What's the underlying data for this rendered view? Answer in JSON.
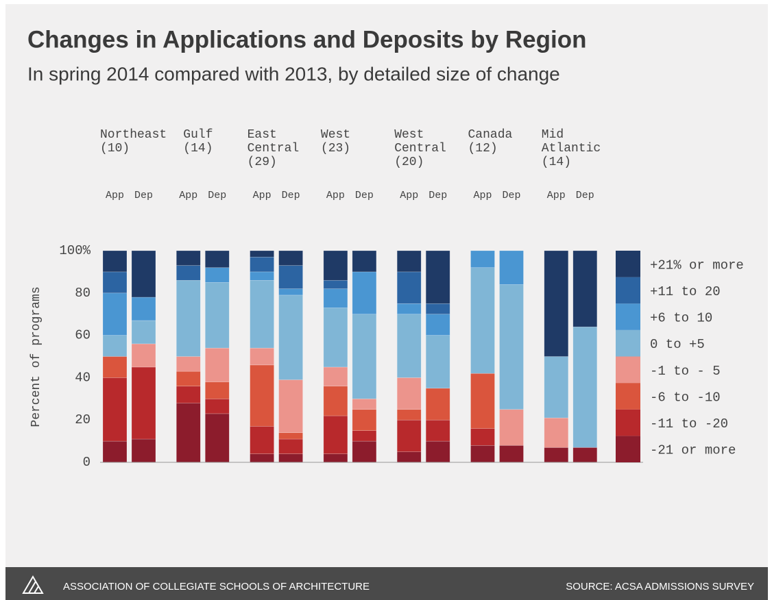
{
  "chart_data": {
    "type": "stacked_bar",
    "title": "Changes in Applications and Deposits by Region",
    "subtitle": "In spring 2014 compared with 2013, by detailed size of change",
    "ylabel": "Percent of programs",
    "groups": [
      [
        "Northeast",
        "(10)"
      ],
      [
        "Gulf",
        "(14)"
      ],
      [
        "East",
        "Central",
        "(29)"
      ],
      [
        "West",
        "(23)"
      ],
      [
        "West",
        "Central",
        "(20)"
      ],
      [
        "Canada",
        "(12)"
      ],
      [
        "Mid",
        "Atlantic",
        "(14)"
      ]
    ],
    "categories": [
      "App",
      "Dep",
      "App",
      "Dep",
      "App",
      "Dep",
      "App",
      "Dep",
      "App",
      "Dep",
      "App",
      "Dep",
      "App",
      "Dep"
    ],
    "ylim": [
      0,
      100
    ],
    "yticks": [
      0,
      20,
      40,
      60,
      80,
      {
        "value": 100,
        "label": "100%"
      }
    ],
    "series": [
      {
        "name": "-21 or more",
        "color": "#8c1c2c",
        "values": [
          10,
          11,
          28,
          23,
          4,
          4,
          4,
          10,
          5,
          10,
          8,
          8,
          7,
          7
        ]
      },
      {
        "name": "-11 to -20",
        "color": "#b8292c",
        "values": [
          30,
          34,
          8,
          7,
          13,
          7,
          18,
          5,
          15,
          10,
          8,
          0,
          0,
          0
        ]
      },
      {
        "name": "-6 to -10",
        "color": "#da553d",
        "values": [
          10,
          0,
          7,
          8,
          29,
          3,
          14,
          10,
          5,
          15,
          26,
          0,
          0,
          0
        ]
      },
      {
        "name": "-1 to - 5",
        "color": "#ec948c",
        "values": [
          0,
          11,
          7,
          16,
          8,
          25,
          9,
          5,
          15,
          0,
          0,
          17,
          14,
          0
        ]
      },
      {
        "name": "0 to +5",
        "color": "#80b6d6",
        "values": [
          10,
          11,
          36,
          31,
          32,
          40,
          28,
          40,
          30,
          25,
          50,
          59,
          29,
          57
        ]
      },
      {
        "name": "+6 to 10",
        "color": "#4a96d2",
        "values": [
          20,
          11,
          0,
          7,
          4,
          3,
          9,
          20,
          5,
          10,
          8,
          16,
          0,
          0
        ]
      },
      {
        "name": "+11 to 20",
        "color": "#2c64a2",
        "values": [
          10,
          0,
          7,
          0,
          7,
          11,
          4,
          0,
          15,
          5,
          0,
          0,
          0,
          0
        ]
      },
      {
        "name": "+21% or more",
        "color": "#1f3a66",
        "values": [
          10,
          22,
          7,
          8,
          3,
          7,
          14,
          10,
          10,
          25,
          0,
          0,
          50,
          36
        ]
      }
    ],
    "footer_left": "ASSOCIATION OF COLLEGIATE SCHOOLS OF ARCHITECTURE",
    "footer_right": "SOURCE: ACSA ADMISSIONS SURVEY"
  }
}
